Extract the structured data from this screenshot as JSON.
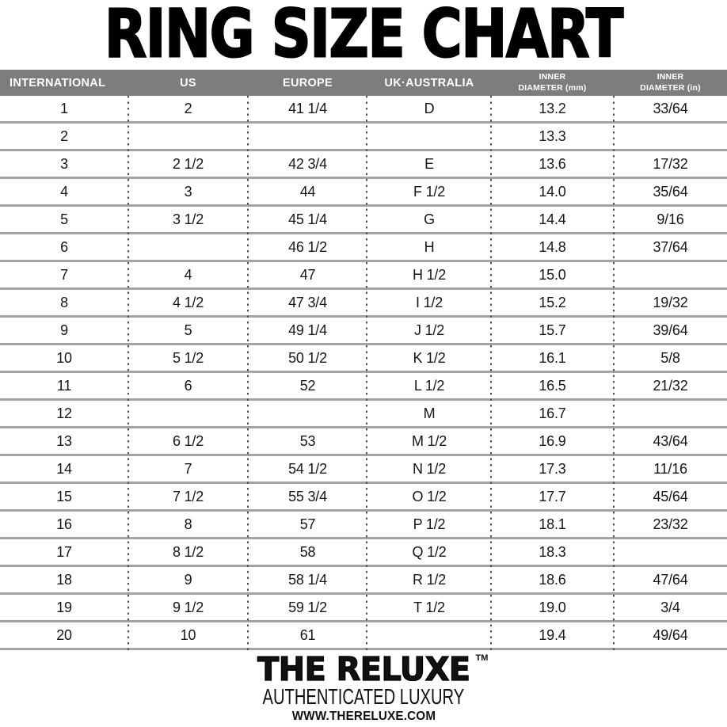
{
  "chart_data": {
    "type": "table",
    "title": "RING SIZE CHART",
    "columns": [
      "INTERNATIONAL",
      "US",
      "EUROPE",
      "UK·AUSTRALIA",
      "INNER\nDIAMETER (mm)",
      "INNER\nDIAMETER (in)"
    ],
    "rows": [
      [
        "1",
        "2",
        "41 1/4",
        "D",
        "13.2",
        "33/64"
      ],
      [
        "2",
        "",
        "",
        "",
        "13.3",
        ""
      ],
      [
        "3",
        "2 1/2",
        "42 3/4",
        "E",
        "13.6",
        "17/32"
      ],
      [
        "4",
        "3",
        "44",
        "F 1/2",
        "14.0",
        "35/64"
      ],
      [
        "5",
        "3 1/2",
        "45 1/4",
        "G",
        "14.4",
        "9/16"
      ],
      [
        "6",
        "",
        "46 1/2",
        "H",
        "14.8",
        "37/64"
      ],
      [
        "7",
        "4",
        "47",
        "H 1/2",
        "15.0",
        ""
      ],
      [
        "8",
        "4 1/2",
        "47 3/4",
        "I 1/2",
        "15.2",
        "19/32"
      ],
      [
        "9",
        "5",
        "49 1/4",
        "J 1/2",
        "15.7",
        "39/64"
      ],
      [
        "10",
        "5 1/2",
        "50 1/2",
        "K 1/2",
        "16.1",
        "5/8"
      ],
      [
        "11",
        "6",
        "52",
        "L 1/2",
        "16.5",
        "21/32"
      ],
      [
        "12",
        "",
        "",
        "M",
        "16.7",
        ""
      ],
      [
        "13",
        "6 1/2",
        "53",
        "M 1/2",
        "16.9",
        "43/64"
      ],
      [
        "14",
        "7",
        "54 1/2",
        "N 1/2",
        "17.3",
        "11/16"
      ],
      [
        "15",
        "7 1/2",
        "55 3/4",
        "O 1/2",
        "17.7",
        "45/64"
      ],
      [
        "16",
        "8",
        "57",
        "P 1/2",
        "18.1",
        "23/32"
      ],
      [
        "17",
        "8 1/2",
        "58",
        "Q 1/2",
        "18.3",
        ""
      ],
      [
        "18",
        "9",
        "58 1/4",
        "R 1/2",
        "18.6",
        "47/64"
      ],
      [
        "19",
        "9 1/2",
        "59 1/2",
        "T 1/2",
        "19.0",
        "3/4"
      ],
      [
        "20",
        "10",
        "61",
        "",
        "19.4",
        "49/64"
      ]
    ]
  },
  "footer": {
    "brand": "THE RELUXE",
    "trademark": "TM",
    "tagline": "AUTHENTICATED LUXURY",
    "website": "WWW.THERELUXE.COM"
  },
  "colors": {
    "header_bg": "#7d7d7d",
    "header_text": "#ffffff",
    "row_line_gray": "#a3a3a3",
    "dotted_line_gray": "#4f4f4f",
    "text_black": "#111111"
  }
}
